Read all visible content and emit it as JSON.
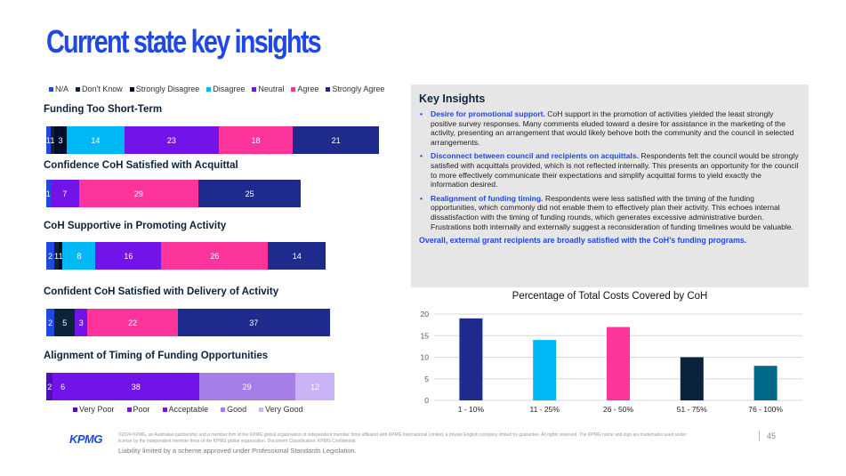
{
  "page_title": "Current state key insights",
  "colors": {
    "na": "#1e49e2",
    "dont_know": "#0c233c",
    "strongly_disagree": "#000e2b",
    "disagree": "#00b8f5",
    "neutral": "#7213ea",
    "agree": "#fd349c",
    "strongly_agree": "#1e2a8c",
    "very_poor": "#510dbc",
    "poor": "#7213ea",
    "acceptable": "#7213ea",
    "good": "#a57ee8",
    "very_good": "#c9b3f5",
    "cost_bar_1": "#1e2a8c",
    "cost_bar_2": "#00b8f5",
    "cost_bar_3": "#fd349c",
    "cost_bar_4": "#0c233c",
    "cost_bar_5": "#00688b"
  },
  "legend_top": [
    {
      "label": "N/A",
      "color": "#1e49e2"
    },
    {
      "label": "Don't Know",
      "color": "#0c233c"
    },
    {
      "label": "Strongly Disagree",
      "color": "#000e2b"
    },
    {
      "label": "Disagree",
      "color": "#00b8f5"
    },
    {
      "label": "Neutral",
      "color": "#7213ea"
    },
    {
      "label": "Agree",
      "color": "#fd349c"
    },
    {
      "label": "Strongly Agree",
      "color": "#1e2a8c"
    }
  ],
  "legend_bottom": [
    {
      "label": "Very Poor",
      "color": "#510dbc"
    },
    {
      "label": "Poor",
      "color": "#7213ea"
    },
    {
      "label": "Acceptable",
      "color": "#7213ea"
    },
    {
      "label": "Good",
      "color": "#a57ee8"
    },
    {
      "label": "Very Good",
      "color": "#c9b3f5"
    }
  ],
  "chart_data": [
    {
      "type": "bar",
      "orientation": "horizontal",
      "stacked": true,
      "categories": [
        "Funding Too Short-Term",
        "Confidence CoH Satisfied with Acquittal",
        "CoH Supportive in Promoting Activity",
        "Confident CoH Satisfied with Delivery of Activity"
      ],
      "series": [
        {
          "name": "N/A",
          "values": [
            1,
            1,
            2,
            2
          ]
        },
        {
          "name": "Don't Know",
          "values": [
            1,
            0,
            1,
            5
          ]
        },
        {
          "name": "Strongly Disagree",
          "values": [
            3,
            0,
            1,
            0
          ]
        },
        {
          "name": "Disagree",
          "values": [
            14,
            0,
            8,
            0
          ]
        },
        {
          "name": "Neutral",
          "values": [
            23,
            7,
            16,
            3
          ]
        },
        {
          "name": "Agree",
          "values": [
            18,
            29,
            26,
            22
          ]
        },
        {
          "name": "Strongly Agree",
          "values": [
            21,
            25,
            14,
            37
          ]
        }
      ],
      "labels": [
        [
          "1",
          "1",
          "3",
          "14",
          "23",
          "18",
          "21"
        ],
        [
          "1",
          "",
          "",
          "",
          "7",
          "29",
          "25"
        ],
        [
          "2",
          "1",
          "1",
          "8",
          "16",
          "26",
          "14"
        ],
        [
          "2",
          "5",
          "",
          "",
          "3",
          "22",
          "37"
        ]
      ],
      "series_labels_override": [
        [
          null,
          null,
          null,
          null,
          null,
          null,
          null
        ],
        [
          null,
          null,
          null,
          null,
          null,
          null,
          null
        ],
        [
          null,
          null,
          null,
          null,
          null,
          null,
          null
        ],
        [
          null,
          null,
          null,
          null,
          null,
          null,
          null
        ]
      ]
    },
    {
      "type": "bar",
      "orientation": "horizontal",
      "stacked": true,
      "categories": [
        "Alignment of Timing of Funding Opportunities"
      ],
      "series": [
        {
          "name": "Very Poor",
          "values": [
            2
          ]
        },
        {
          "name": "Poor",
          "values": [
            6
          ]
        },
        {
          "name": "Acceptable",
          "values": [
            38
          ]
        },
        {
          "name": "Good",
          "values": [
            29
          ]
        },
        {
          "name": "Very Good",
          "values": [
            12
          ]
        }
      ]
    },
    {
      "type": "bar",
      "title": "Percentage of Total Costs Covered by CoH",
      "categories": [
        "1 - 10%",
        "11 - 25%",
        "26 - 50%",
        "51 - 75%",
        "76 - 100%"
      ],
      "values": [
        19,
        14,
        17,
        10,
        8
      ],
      "ylim": [
        0,
        20
      ],
      "yticks": [
        0,
        5,
        10,
        15,
        20
      ],
      "grid": true,
      "xlabel": "",
      "ylabel": ""
    }
  ],
  "insights": {
    "heading": "Key Insights",
    "items": [
      {
        "lead": "Desire for promotional support.",
        "text": " CoH support in the promotion of activities yielded the least strongly positive survey responses. Many comments eluded toward a desire for assistance in the marketing of the activity, presenting an arrangement that would likely behove both the community and the council in selected arrangements."
      },
      {
        "lead": "Disconnect between council and recipients on acquittals.",
        "text": " Respondents felt the council would be strongly satisfied with acquittals provided, which is not reflected internally. This presents an opportunity for the council to more effectively communicate their expectations and simplify acquittal forms to yield exactly the information desired."
      },
      {
        "lead": "Realignment of funding timing.",
        "text": " Respondents were less satisfied with the timing of the funding opportunities, which commonly did not enable them to effectively plan their activity. This echoes internal dissatisfaction with the timing of funding rounds, which generates excessive administrative burden. Frustrations both internally and externally suggest a reconsideration of funding timelines would be valuable."
      }
    ],
    "summary": "Overall, external grant recipients are broadly satisfied with the CoH’s funding programs."
  },
  "footer": {
    "logo": "KPMG",
    "legal": "©2024 KPMG, an Australian partnership and a member firm of the KPMG global organisation of independent member firms affiliated with KPMG International Limited, a private English company limited by guarantee. All rights reserved. The KPMG name and logo are trademarks used under license by the independent member firms of the KPMG global organisation. Document Classification: KPMG Confidential",
    "liability": "Liability limited by a scheme approved under Professional Standards Legislation.",
    "page_number": "45"
  }
}
